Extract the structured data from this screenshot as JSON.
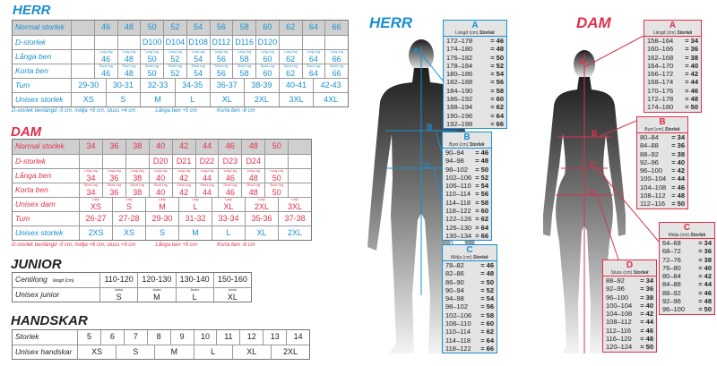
{
  "herr": {
    "title": "HERR",
    "color": "#1a8fd0",
    "rows": [
      {
        "label": "Normal storlek",
        "header": true,
        "cells": [
          "",
          "46",
          "48",
          "50",
          "52",
          "54",
          "56",
          "58",
          "60",
          "62",
          "64",
          "66"
        ]
      },
      {
        "label": "D-storlek",
        "cells": [
          "",
          "",
          "",
          "D100",
          "D104",
          "D108",
          "D112",
          "D116",
          "D120",
          "",
          "",
          ""
        ]
      },
      {
        "label": "Långa ben",
        "sub": "Long Leg",
        "cells": [
          "",
          "46",
          "48",
          "50",
          "52",
          "54",
          "56",
          "58",
          "60",
          "62",
          "64",
          "66"
        ]
      },
      {
        "label": "Korta ben",
        "sub": "Short Leg",
        "cells": [
          "",
          "46",
          "48",
          "50",
          "52",
          "54",
          "56",
          "58",
          "60",
          "62",
          "64",
          "66"
        ]
      },
      {
        "label": "Tum",
        "cells": [
          "29-30",
          "30-31",
          "32-33",
          "34-35",
          "36-37",
          "38-39",
          "40-41",
          "42-43"
        ]
      },
      {
        "label": "Unisex storlek",
        "cells": [
          "XS",
          "S",
          "M",
          "L",
          "XL",
          "2XL",
          "3XL",
          "4XL"
        ]
      }
    ],
    "notes": [
      "D-storlek benlängd -5 cm, midja +9 cm, stuss +4 cm",
      "Långa ben +5 cm",
      "Korta ben -8 cm"
    ]
  },
  "dam": {
    "title": "DAM",
    "color": "#e0304a",
    "rows": [
      {
        "label": "Normal storlek",
        "header": true,
        "cells": [
          "34",
          "36",
          "38",
          "40",
          "42",
          "44",
          "46",
          "48",
          "50",
          ""
        ]
      },
      {
        "label": "D-storlek",
        "cells": [
          "",
          "",
          "",
          "D20",
          "D21",
          "D22",
          "D23",
          "D24",
          "",
          ""
        ]
      },
      {
        "label": "Långa ben",
        "sub": "Long Leg",
        "cells": [
          "34",
          "36",
          "38",
          "40",
          "42",
          "44",
          "46",
          "48",
          "50",
          ""
        ]
      },
      {
        "label": "Korta ben",
        "sub": "Short Leg",
        "cells": [
          "34",
          "36",
          "38",
          "40",
          "42",
          "44",
          "46",
          "48",
          "50",
          ""
        ]
      },
      {
        "label": "Unisex dam",
        "sub": "Lady",
        "cells": [
          "XS",
          "S",
          "M",
          "L",
          "XL",
          "2XL",
          "3XL"
        ]
      },
      {
        "label": "Tum",
        "cells": [
          "26-27",
          "27-28",
          "29-30",
          "31-32",
          "33-34",
          "35-36",
          "37-38"
        ]
      },
      {
        "label": "Unisex storlek",
        "color": "#1a8fd0",
        "cells": [
          "2XS",
          "XS",
          "S",
          "M",
          "L",
          "XL",
          "2XL"
        ]
      }
    ],
    "notes": [
      "D-storlek benlängd -5 cm, midja +6 cm, stuss +9 cm",
      "Långa ben +5 cm",
      "Korta ben -8 cm"
    ]
  },
  "junior": {
    "title": "JUNIOR",
    "color": "#222222",
    "rows": [
      {
        "label": "Centilong",
        "unit": "längd (cm)",
        "cells": [
          "110-120",
          "120-130",
          "130-140",
          "150-160"
        ]
      },
      {
        "label": "Unisex junior",
        "sub": "Junior",
        "cells": [
          "S",
          "M",
          "L",
          "XL"
        ]
      }
    ]
  },
  "handskar": {
    "title": "HANDSKAR",
    "color": "#222222",
    "rows": [
      {
        "label": "Storlek",
        "cells": [
          "5",
          "6",
          "7",
          "8",
          "9",
          "10",
          "11",
          "12",
          "13",
          "14"
        ]
      },
      {
        "label": "Unisex handskar",
        "cells": [
          "XS",
          "S",
          "M",
          "L",
          "XL",
          "2XL"
        ]
      }
    ]
  },
  "herr_figure": {
    "title": "HERR",
    "color": "#1a8fd0",
    "markers": [
      "A",
      "B",
      "C"
    ],
    "boxes": [
      {
        "letter": "A",
        "measure": "Längd (cm)",
        "size_label": "Storlek",
        "rows": [
          [
            "172–178",
            "= 46"
          ],
          [
            "174–180",
            "= 48"
          ],
          [
            "176–182",
            "= 50"
          ],
          [
            "178–184",
            "= 52"
          ],
          [
            "180–186",
            "= 54"
          ],
          [
            "182–188",
            "= 56"
          ],
          [
            "184–190",
            "= 58"
          ],
          [
            "186–192",
            "= 60"
          ],
          [
            "188–194",
            "= 62"
          ],
          [
            "190–196",
            "= 64"
          ],
          [
            "192–198",
            "= 66"
          ]
        ]
      },
      {
        "letter": "B",
        "measure": "Byst (cm)",
        "size_label": "Storlek",
        "rows": [
          [
            "90–94",
            "= 46"
          ],
          [
            "94–98",
            "= 48"
          ],
          [
            "98–102",
            "= 50"
          ],
          [
            "102–106",
            "= 52"
          ],
          [
            "106–110",
            "= 54"
          ],
          [
            "110–114",
            "= 56"
          ],
          [
            "114–118",
            "= 58"
          ],
          [
            "118–122",
            "= 60"
          ],
          [
            "122–126",
            "= 62"
          ],
          [
            "126–130",
            "= 64"
          ],
          [
            "130–134",
            "= 66"
          ]
        ]
      },
      {
        "letter": "C",
        "measure": "Midja (cm)",
        "size_label": "Storlek",
        "rows": [
          [
            "78–82",
            "= 46"
          ],
          [
            "82–86",
            "= 48"
          ],
          [
            "86–90",
            "= 50"
          ],
          [
            "90–94",
            "= 52"
          ],
          [
            "94–98",
            "= 54"
          ],
          [
            "98–102",
            "= 56"
          ],
          [
            "102–106",
            "= 58"
          ],
          [
            "106–110",
            "= 60"
          ],
          [
            "110–114",
            "= 62"
          ],
          [
            "114–118",
            "= 64"
          ],
          [
            "118–122",
            "= 66"
          ]
        ]
      }
    ]
  },
  "dam_figure": {
    "title": "DAM",
    "color": "#e0304a",
    "markers": [
      "A",
      "B",
      "C",
      "D"
    ],
    "boxes": [
      {
        "letter": "A",
        "measure": "Längd (cm)",
        "size_label": "Storlek",
        "rows": [
          [
            "158–164",
            "= 34"
          ],
          [
            "160–166",
            "= 36"
          ],
          [
            "162–168",
            "= 38"
          ],
          [
            "164–170",
            "= 40"
          ],
          [
            "166–172",
            "= 42"
          ],
          [
            "168–174",
            "= 44"
          ],
          [
            "170–176",
            "= 46"
          ],
          [
            "172–178",
            "= 48"
          ],
          [
            "174–180",
            "= 50"
          ]
        ]
      },
      {
        "letter": "B",
        "measure": "Byst (cm)",
        "size_label": "Storlek",
        "rows": [
          [
            "80–84",
            "= 34"
          ],
          [
            "84–88",
            "= 36"
          ],
          [
            "88–92",
            "= 38"
          ],
          [
            "92–96",
            "= 40"
          ],
          [
            "96–100",
            "= 42"
          ],
          [
            "100–104",
            "= 44"
          ],
          [
            "104–108",
            "= 46"
          ],
          [
            "108–112",
            "= 48"
          ],
          [
            "112–116",
            "= 50"
          ]
        ]
      },
      {
        "letter": "C",
        "measure": "Midja (cm)",
        "size_label": "Storlek",
        "rows": [
          [
            "64–68",
            "= 34"
          ],
          [
            "68–72",
            "= 36"
          ],
          [
            "72–76",
            "= 38"
          ],
          [
            "76–80",
            "= 40"
          ],
          [
            "80–84",
            "= 42"
          ],
          [
            "84–88",
            "= 44"
          ],
          [
            "88–92",
            "= 46"
          ],
          [
            "92–96",
            "= 48"
          ],
          [
            "96–100",
            "= 50"
          ]
        ]
      },
      {
        "letter": "D",
        "measure": "Stuss (cm)",
        "size_label": "Storlek",
        "rows": [
          [
            "88–92",
            "= 34"
          ],
          [
            "92–96",
            "= 36"
          ],
          [
            "96–100",
            "= 38"
          ],
          [
            "100–104",
            "= 40"
          ],
          [
            "104–108",
            "= 42"
          ],
          [
            "108–112",
            "= 44"
          ],
          [
            "112–116",
            "= 46"
          ],
          [
            "116–120",
            "= 48"
          ],
          [
            "120–124",
            "= 50"
          ]
        ]
      }
    ]
  }
}
